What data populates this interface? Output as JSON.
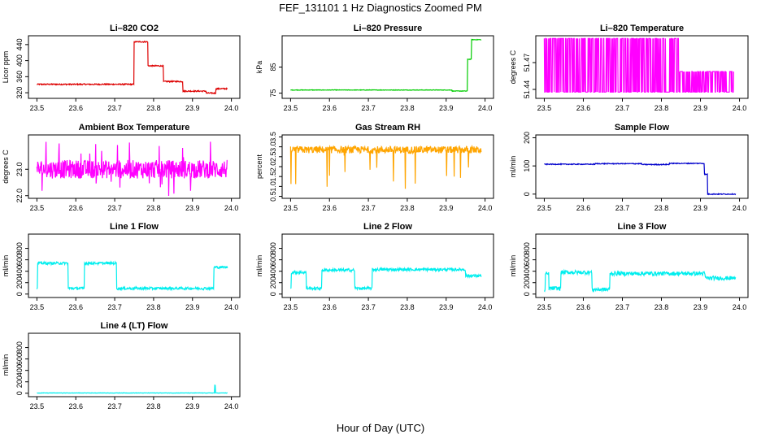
{
  "figure": {
    "title": "FEF_131101  1 Hz Diagnostics Zoomed PM",
    "xlabel": "Hour of Day (UTC)"
  },
  "chart_data": [
    {
      "id": "co2",
      "type": "line",
      "title": "Li–820 CO2",
      "ylabel": "Licor ppm",
      "color": "#dd0000",
      "xlim": [
        23.5,
        24.0
      ],
      "ylim": [
        306,
        462
      ],
      "xticks": [
        "23.5",
        "23.6",
        "23.7",
        "23.8",
        "23.9",
        "24.0"
      ],
      "yticks": [
        "320",
        "360",
        "400",
        "440"
      ],
      "series": [
        {
          "name": "CO2",
          "style": "step",
          "x_start": 23.5,
          "x_end": 23.99,
          "values": [
            {
              "x": 23.5,
              "y": 341
            },
            {
              "x": 23.75,
              "y": 447
            },
            {
              "x": 23.785,
              "y": 387
            },
            {
              "x": 23.825,
              "y": 348
            },
            {
              "x": 23.875,
              "y": 324
            },
            {
              "x": 23.935,
              "y": 319
            },
            {
              "x": 23.96,
              "y": 330
            }
          ],
          "noise": 1.5
        }
      ]
    },
    {
      "id": "pressure",
      "type": "line",
      "title": "Li–820 Pressure",
      "ylabel": "kPa",
      "color": "#00cc00",
      "xlim": [
        23.5,
        24.0
      ],
      "ylim": [
        73,
        97
      ],
      "xticks": [
        "23.5",
        "23.6",
        "23.7",
        "23.8",
        "23.9",
        "24.0"
      ],
      "yticks": [
        "75",
        "85"
      ],
      "series": [
        {
          "name": "Pressure",
          "style": "step",
          "x_start": 23.5,
          "x_end": 23.99,
          "values": [
            {
              "x": 23.5,
              "y": 76.2
            },
            {
              "x": 23.915,
              "y": 75.8
            },
            {
              "x": 23.955,
              "y": 88
            },
            {
              "x": 23.965,
              "y": 95.5
            }
          ],
          "noise": 0.1
        }
      ]
    },
    {
      "id": "licor_temp",
      "type": "line",
      "title": "Li–820 Temperature",
      "ylabel": "degrees C",
      "color": "#ff00ff",
      "xlim": [
        23.5,
        24.0
      ],
      "ylim": [
        51.43,
        51.5
      ],
      "xticks": [
        "23.5",
        "23.6",
        "23.7",
        "23.8",
        "23.9",
        "24.0"
      ],
      "yticks": [
        "51.44",
        "51.47"
      ],
      "series": [
        {
          "name": "Temperature",
          "style": "flip",
          "x_start": 23.5,
          "x_end": 23.985,
          "levels": [
            51.437,
            51.497
          ],
          "change_x": 23.845,
          "late_levels": [
            51.437,
            51.46
          ],
          "noise": 0
        }
      ]
    },
    {
      "id": "ambient_temp",
      "type": "line",
      "title": "Ambient Box Temperature",
      "ylabel": "degrees C",
      "color": "#ff00ff",
      "xlim": [
        23.5,
        24.0
      ],
      "ylim": [
        21.9,
        24.3
      ],
      "xticks": [
        "23.5",
        "23.6",
        "23.7",
        "23.8",
        "23.9",
        "24.0"
      ],
      "yticks": [
        "22.0",
        "23.0"
      ],
      "series": [
        {
          "name": "Ambient",
          "style": "noise",
          "x_start": 23.5,
          "x_end": 23.99,
          "values": [
            {
              "x": 23.5,
              "y": 23.0
            }
          ],
          "noise": 0.35,
          "spikes": 0.7
        }
      ]
    },
    {
      "id": "rh",
      "type": "line",
      "title": "Gas Stream RH",
      "ylabel": "percent",
      "color": "#ffa500",
      "xlim": [
        23.5,
        24.0
      ],
      "ylim": [
        0.4,
        3.6
      ],
      "xticks": [
        "23.5",
        "23.6",
        "23.7",
        "23.8",
        "23.9",
        "24.0"
      ],
      "yticks": [
        "0.5",
        "1.0",
        "1.5",
        "2.0",
        "2.5",
        "3.0",
        "3.5"
      ],
      "series": [
        {
          "name": "RH",
          "style": "noise-dip",
          "x_start": 23.5,
          "x_end": 23.99,
          "values": [
            {
              "x": 23.5,
              "y": 2.85
            }
          ],
          "noise": 0.18,
          "dips": 2.0
        }
      ]
    },
    {
      "id": "sample_flow",
      "type": "line",
      "title": "Sample Flow",
      "ylabel": "ml/min",
      "color": "#0000cc",
      "xlim": [
        23.5,
        24.0
      ],
      "ylim": [
        -15,
        210
      ],
      "xticks": [
        "23.5",
        "23.6",
        "23.7",
        "23.8",
        "23.9",
        "24.0"
      ],
      "yticks": [
        "0",
        "100",
        "200"
      ],
      "series": [
        {
          "name": "Sample Flow",
          "style": "step",
          "x_start": 23.5,
          "x_end": 23.99,
          "values": [
            {
              "x": 23.5,
              "y": 106
            },
            {
              "x": 23.63,
              "y": 108
            },
            {
              "x": 23.75,
              "y": 105
            },
            {
              "x": 23.82,
              "y": 109
            },
            {
              "x": 23.91,
              "y": 70
            },
            {
              "x": 23.918,
              "y": 0
            }
          ],
          "noise": 1.5
        }
      ]
    },
    {
      "id": "line1",
      "type": "line",
      "title": "Line 1 Flow",
      "ylabel": "ml/min",
      "color": "#00eeee",
      "xlim": [
        23.5,
        24.0
      ],
      "ylim": [
        -60,
        1050
      ],
      "xticks": [
        "23.5",
        "23.6",
        "23.7",
        "23.8",
        "23.9",
        "24.0"
      ],
      "yticks": [
        "0",
        "200",
        "400",
        "600",
        "800"
      ],
      "series": [
        {
          "name": "Line 1",
          "style": "step",
          "x_start": 23.5,
          "x_end": 23.99,
          "values": [
            {
              "x": 23.5,
              "y": 100
            },
            {
              "x": 23.502,
              "y": 540
            },
            {
              "x": 23.58,
              "y": 100
            },
            {
              "x": 23.622,
              "y": 540
            },
            {
              "x": 23.705,
              "y": 100
            },
            {
              "x": 23.955,
              "y": 470
            }
          ],
          "noise": 22
        }
      ]
    },
    {
      "id": "line2",
      "type": "line",
      "title": "Line 2 Flow",
      "ylabel": "ml/min",
      "color": "#00eeee",
      "xlim": [
        23.5,
        24.0
      ],
      "ylim": [
        -60,
        1050
      ],
      "xticks": [
        "23.5",
        "23.6",
        "23.7",
        "23.8",
        "23.9",
        "24.0"
      ],
      "yticks": [
        "0",
        "200",
        "400",
        "600",
        "800"
      ],
      "series": [
        {
          "name": "Line 2",
          "style": "step",
          "x_start": 23.5,
          "x_end": 23.99,
          "values": [
            {
              "x": 23.5,
              "y": 100
            },
            {
              "x": 23.502,
              "y": 380
            },
            {
              "x": 23.54,
              "y": 100
            },
            {
              "x": 23.58,
              "y": 420
            },
            {
              "x": 23.665,
              "y": 100
            },
            {
              "x": 23.71,
              "y": 430
            },
            {
              "x": 23.95,
              "y": 320
            }
          ],
          "noise": 25
        }
      ]
    },
    {
      "id": "line3",
      "type": "line",
      "title": "Line 3 Flow",
      "ylabel": "ml/min",
      "color": "#00eeee",
      "xlim": [
        23.5,
        24.0
      ],
      "ylim": [
        -60,
        1050
      ],
      "xticks": [
        "23.5",
        "23.6",
        "23.7",
        "23.8",
        "23.9",
        "24.0"
      ],
      "yticks": [
        "0",
        "200",
        "400",
        "600",
        "800"
      ],
      "series": [
        {
          "name": "Line 3",
          "style": "step",
          "x_start": 23.5,
          "x_end": 23.99,
          "values": [
            {
              "x": 23.5,
              "y": 60
            },
            {
              "x": 23.503,
              "y": 350
            },
            {
              "x": 23.512,
              "y": 100
            },
            {
              "x": 23.542,
              "y": 380
            },
            {
              "x": 23.622,
              "y": 80
            },
            {
              "x": 23.668,
              "y": 360
            },
            {
              "x": 23.912,
              "y": 280
            }
          ],
          "noise": 35
        }
      ]
    },
    {
      "id": "line4",
      "type": "line",
      "title": "Line 4 (LT) Flow",
      "ylabel": "ml/min",
      "color": "#00eeee",
      "xlim": [
        23.5,
        24.0
      ],
      "ylim": [
        -60,
        1050
      ],
      "xticks": [
        "23.5",
        "23.6",
        "23.7",
        "23.8",
        "23.9",
        "24.0"
      ],
      "yticks": [
        "0",
        "200",
        "400",
        "600",
        "800"
      ],
      "series": [
        {
          "name": "Line 4",
          "style": "step",
          "x_start": 23.5,
          "x_end": 23.99,
          "values": [
            {
              "x": 23.5,
              "y": 5
            },
            {
              "x": 23.957,
              "y": 140
            },
            {
              "x": 23.959,
              "y": 5
            }
          ],
          "noise": 3
        }
      ]
    }
  ]
}
